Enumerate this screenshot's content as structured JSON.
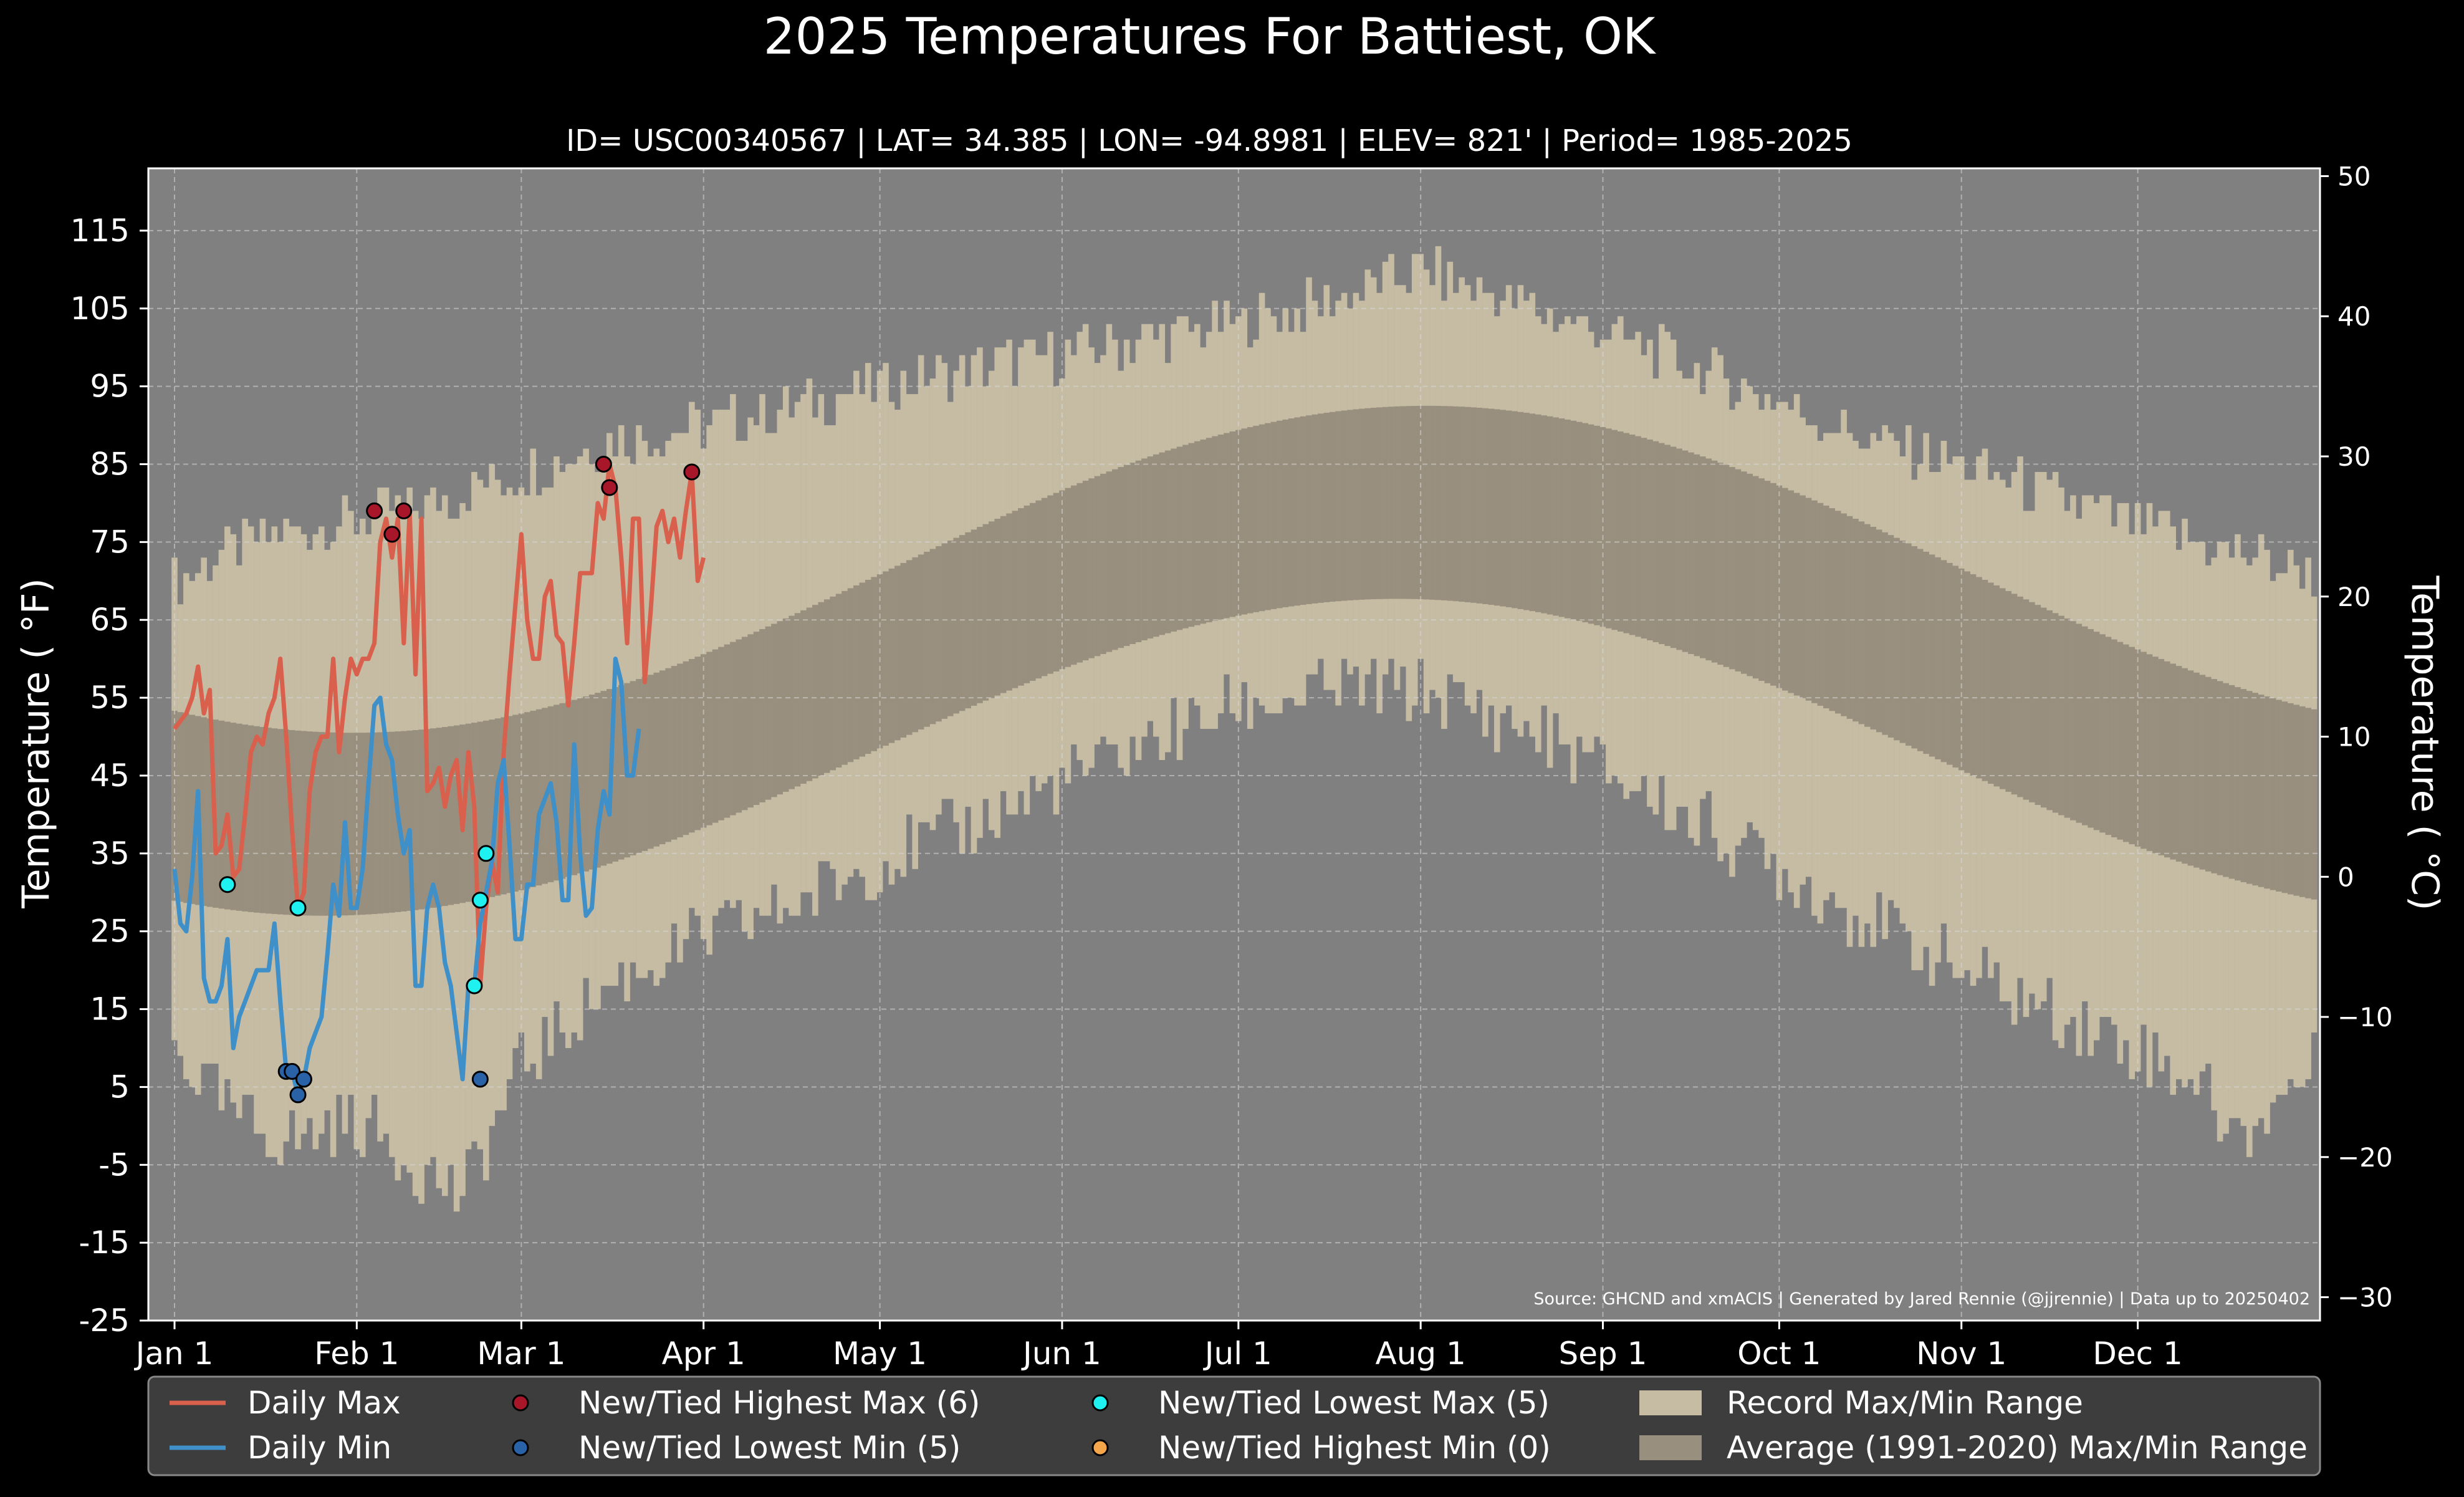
{
  "chart_data": {
    "type": "line",
    "title": "2025 Temperatures For Battiest, OK",
    "subtitle": "ID= USC00340567 | LAT= 34.385 | LON= -94.8981 | ELEV= 821' | Period= 1985-2025",
    "ylabel": "Temperature ( $^\\circ$F)",
    "ylabel_display": "Temperature ( °F)",
    "ylabel_right_display": "Temperature ( °C)",
    "source": "Source: GHCND and xmACIS | Generated by Jared Rennie (@jjrennie) | Data up to 20250402",
    "ylim": [
      -25,
      123
    ],
    "ylim_right": [
      -31.7,
      50.6
    ],
    "yticks": [
      "115",
      "105",
      "95",
      "85",
      "75",
      "65",
      "55",
      "45",
      "35",
      "25",
      "15",
      "5",
      "-5",
      "-15",
      "-25"
    ],
    "yticks_right": [
      "50",
      "40",
      "30",
      "20",
      "10",
      "0",
      "−10",
      "−20",
      "−30"
    ],
    "xticks": [
      {
        "day": 1,
        "label": "Jan 1"
      },
      {
        "day": 32,
        "label": "Feb 1"
      },
      {
        "day": 60,
        "label": "Mar 1"
      },
      {
        "day": 91,
        "label": "Apr 1"
      },
      {
        "day": 121,
        "label": "May 1"
      },
      {
        "day": 152,
        "label": "Jun 1"
      },
      {
        "day": 182,
        "label": "Jul 1"
      },
      {
        "day": 213,
        "label": "Aug 1"
      },
      {
        "day": 244,
        "label": "Sep 1"
      },
      {
        "day": 274,
        "label": "Oct 1"
      },
      {
        "day": 305,
        "label": "Nov 1"
      },
      {
        "day": 335,
        "label": "Dec 1"
      }
    ],
    "grid": true,
    "legend_position": "bottom",
    "colors": {
      "background": "#000000",
      "plot_bg": "#808080",
      "record_range": "#c6bca4",
      "avg_range": "#998f7e",
      "daily_max": "#d9604c",
      "daily_min": "#3f8fc8",
      "highest_max": "#a8162a",
      "lowest_min": "#2a62a8",
      "lowest_max": "#1ff0f0",
      "highest_min": "#f5a54a"
    },
    "legend": [
      {
        "label": "Daily Max",
        "kind": "line",
        "color": "#d9604c"
      },
      {
        "label": "Daily Min",
        "kind": "line",
        "color": "#3f8fc8"
      },
      {
        "label": "New/Tied Highest Max (6)",
        "kind": "dot",
        "color": "#a8162a"
      },
      {
        "label": "New/Tied Lowest Min (5)",
        "kind": "dot",
        "color": "#2a62a8"
      },
      {
        "label": "New/Tied Lowest Max (5)",
        "kind": "dot",
        "color": "#1ff0f0"
      },
      {
        "label": "New/Tied Highest Min (0)",
        "kind": "dot",
        "color": "#f5a54a"
      },
      {
        "label": "Record Max/Min Range",
        "kind": "patch",
        "color": "#c6bca4"
      },
      {
        "label": "Average (1991-2020) Max/Min Range",
        "kind": "patch",
        "color": "#998f7e"
      }
    ],
    "record_max_anchors": [
      [
        1,
        70
      ],
      [
        10,
        74
      ],
      [
        20,
        76
      ],
      [
        32,
        78
      ],
      [
        45,
        80
      ],
      [
        60,
        84
      ],
      [
        75,
        88
      ],
      [
        91,
        90
      ],
      [
        105,
        92
      ],
      [
        121,
        95
      ],
      [
        135,
        97
      ],
      [
        152,
        99
      ],
      [
        166,
        101
      ],
      [
        182,
        103
      ],
      [
        198,
        106
      ],
      [
        213,
        110
      ],
      [
        228,
        106
      ],
      [
        244,
        102
      ],
      [
        258,
        98
      ],
      [
        274,
        93
      ],
      [
        290,
        88
      ],
      [
        305,
        85
      ],
      [
        320,
        81
      ],
      [
        335,
        77
      ],
      [
        350,
        74
      ],
      [
        365,
        71
      ]
    ],
    "record_min_anchors": [
      [
        1,
        10
      ],
      [
        10,
        2
      ],
      [
        20,
        -2
      ],
      [
        32,
        1
      ],
      [
        42,
        -5
      ],
      [
        50,
        -9
      ],
      [
        60,
        8
      ],
      [
        75,
        18
      ],
      [
        91,
        24
      ],
      [
        105,
        28
      ],
      [
        121,
        34
      ],
      [
        135,
        38
      ],
      [
        152,
        44
      ],
      [
        166,
        49
      ],
      [
        182,
        54
      ],
      [
        198,
        56
      ],
      [
        213,
        56
      ],
      [
        228,
        52
      ],
      [
        244,
        46
      ],
      [
        258,
        40
      ],
      [
        274,
        33
      ],
      [
        290,
        26
      ],
      [
        305,
        20
      ],
      [
        320,
        15
      ],
      [
        335,
        10
      ],
      [
        345,
        6
      ],
      [
        352,
        -2
      ],
      [
        365,
        8
      ]
    ],
    "avg_max": {
      "min": 50.5,
      "max": 92.5,
      "peak_day": 214
    },
    "avg_min": {
      "min": 27,
      "max": 67.7,
      "peak_day": 209
    },
    "daily_max": [
      [
        1,
        51
      ],
      [
        2,
        52
      ],
      [
        3,
        53
      ],
      [
        4,
        55
      ],
      [
        5,
        59
      ],
      [
        6,
        53
      ],
      [
        7,
        56
      ],
      [
        8,
        35
      ],
      [
        9,
        36
      ],
      [
        10,
        40
      ],
      [
        11,
        32
      ],
      [
        12,
        33
      ],
      [
        13,
        40
      ],
      [
        14,
        48
      ],
      [
        15,
        50
      ],
      [
        16,
        49
      ],
      [
        17,
        53
      ],
      [
        18,
        55
      ],
      [
        19,
        60
      ],
      [
        20,
        50
      ],
      [
        21,
        38
      ],
      [
        22,
        28
      ],
      [
        23,
        30
      ],
      [
        24,
        43
      ],
      [
        25,
        48
      ],
      [
        26,
        50
      ],
      [
        27,
        50
      ],
      [
        28,
        60
      ],
      [
        29,
        48
      ],
      [
        30,
        55
      ],
      [
        31,
        60
      ],
      [
        32,
        58
      ],
      [
        33,
        60
      ],
      [
        34,
        60
      ],
      [
        35,
        62
      ],
      [
        36,
        75
      ],
      [
        37,
        78
      ],
      [
        38,
        73
      ],
      [
        39,
        78
      ],
      [
        40,
        62
      ],
      [
        41,
        79
      ],
      [
        42,
        58
      ],
      [
        43,
        78
      ],
      [
        44,
        43
      ],
      [
        45,
        44
      ],
      [
        46,
        46
      ],
      [
        47,
        41
      ],
      [
        48,
        45
      ],
      [
        49,
        47
      ],
      [
        50,
        38
      ],
      [
        51,
        48
      ],
      [
        52,
        41
      ],
      [
        53,
        18
      ],
      [
        54,
        28
      ],
      [
        55,
        34
      ],
      [
        56,
        30
      ],
      [
        57,
        48
      ],
      [
        58,
        58
      ],
      [
        59,
        67
      ],
      [
        60,
        76
      ],
      [
        61,
        65
      ],
      [
        62,
        60
      ],
      [
        63,
        60
      ],
      [
        64,
        68
      ],
      [
        65,
        70
      ],
      [
        66,
        63
      ],
      [
        67,
        62
      ],
      [
        68,
        54
      ],
      [
        69,
        62
      ],
      [
        70,
        71
      ],
      [
        71,
        71
      ],
      [
        72,
        71
      ],
      [
        73,
        80
      ],
      [
        74,
        78
      ],
      [
        75,
        85
      ],
      [
        76,
        82
      ],
      [
        77,
        73
      ],
      [
        78,
        62
      ],
      [
        79,
        78
      ],
      [
        80,
        78
      ],
      [
        81,
        57
      ],
      [
        82,
        66
      ],
      [
        83,
        77
      ],
      [
        84,
        79
      ],
      [
        85,
        75
      ],
      [
        86,
        78
      ],
      [
        87,
        73
      ],
      [
        88,
        79
      ],
      [
        89,
        84
      ],
      [
        90,
        70
      ],
      [
        91,
        73
      ]
    ],
    "daily_min": [
      [
        1,
        33
      ],
      [
        2,
        26
      ],
      [
        3,
        25
      ],
      [
        4,
        32
      ],
      [
        5,
        43
      ],
      [
        6,
        19
      ],
      [
        7,
        16
      ],
      [
        8,
        16
      ],
      [
        9,
        18
      ],
      [
        10,
        24
      ],
      [
        11,
        10
      ],
      [
        12,
        14
      ],
      [
        13,
        16
      ],
      [
        14,
        18
      ],
      [
        15,
        20
      ],
      [
        16,
        20
      ],
      [
        17,
        20
      ],
      [
        18,
        26
      ],
      [
        19,
        16
      ],
      [
        20,
        7
      ],
      [
        21,
        7
      ],
      [
        22,
        4
      ],
      [
        23,
        6
      ],
      [
        24,
        10
      ],
      [
        25,
        12
      ],
      [
        26,
        14
      ],
      [
        27,
        22
      ],
      [
        28,
        31
      ],
      [
        29,
        27
      ],
      [
        30,
        39
      ],
      [
        31,
        28
      ],
      [
        32,
        28
      ],
      [
        33,
        33
      ],
      [
        34,
        44
      ],
      [
        35,
        54
      ],
      [
        36,
        55
      ],
      [
        37,
        49
      ],
      [
        38,
        47
      ],
      [
        39,
        40
      ],
      [
        40,
        35
      ],
      [
        41,
        38
      ],
      [
        42,
        18
      ],
      [
        43,
        18
      ],
      [
        44,
        28
      ],
      [
        45,
        31
      ],
      [
        46,
        28
      ],
      [
        47,
        21
      ],
      [
        48,
        18
      ],
      [
        49,
        12
      ],
      [
        50,
        6
      ],
      [
        51,
        18
      ],
      [
        52,
        18
      ],
      [
        53,
        26
      ],
      [
        54,
        30
      ],
      [
        55,
        34
      ],
      [
        56,
        44
      ],
      [
        57,
        47
      ],
      [
        58,
        36
      ],
      [
        59,
        24
      ],
      [
        60,
        24
      ],
      [
        61,
        31
      ],
      [
        62,
        31
      ],
      [
        63,
        40
      ],
      [
        64,
        42
      ],
      [
        65,
        44
      ],
      [
        66,
        39
      ],
      [
        67,
        29
      ],
      [
        68,
        29
      ],
      [
        69,
        49
      ],
      [
        70,
        35
      ],
      [
        71,
        27
      ],
      [
        72,
        28
      ],
      [
        73,
        38
      ],
      [
        74,
        43
      ],
      [
        75,
        40
      ],
      [
        76,
        60
      ],
      [
        77,
        57
      ],
      [
        78,
        45
      ],
      [
        79,
        45
      ],
      [
        80,
        51
      ]
    ],
    "highest_max_points": [
      [
        35,
        79
      ],
      [
        38,
        76
      ],
      [
        40,
        79
      ],
      [
        74,
        85
      ],
      [
        75,
        82
      ],
      [
        89,
        84
      ]
    ],
    "lowest_min_points": [
      [
        20,
        7
      ],
      [
        21,
        7
      ],
      [
        22,
        4
      ],
      [
        23,
        6
      ],
      [
        53,
        6
      ]
    ],
    "lowest_max_points": [
      [
        10,
        31
      ],
      [
        22,
        28
      ],
      [
        52,
        18
      ],
      [
        53,
        29
      ],
      [
        54,
        35
      ]
    ],
    "highest_min_points": []
  }
}
